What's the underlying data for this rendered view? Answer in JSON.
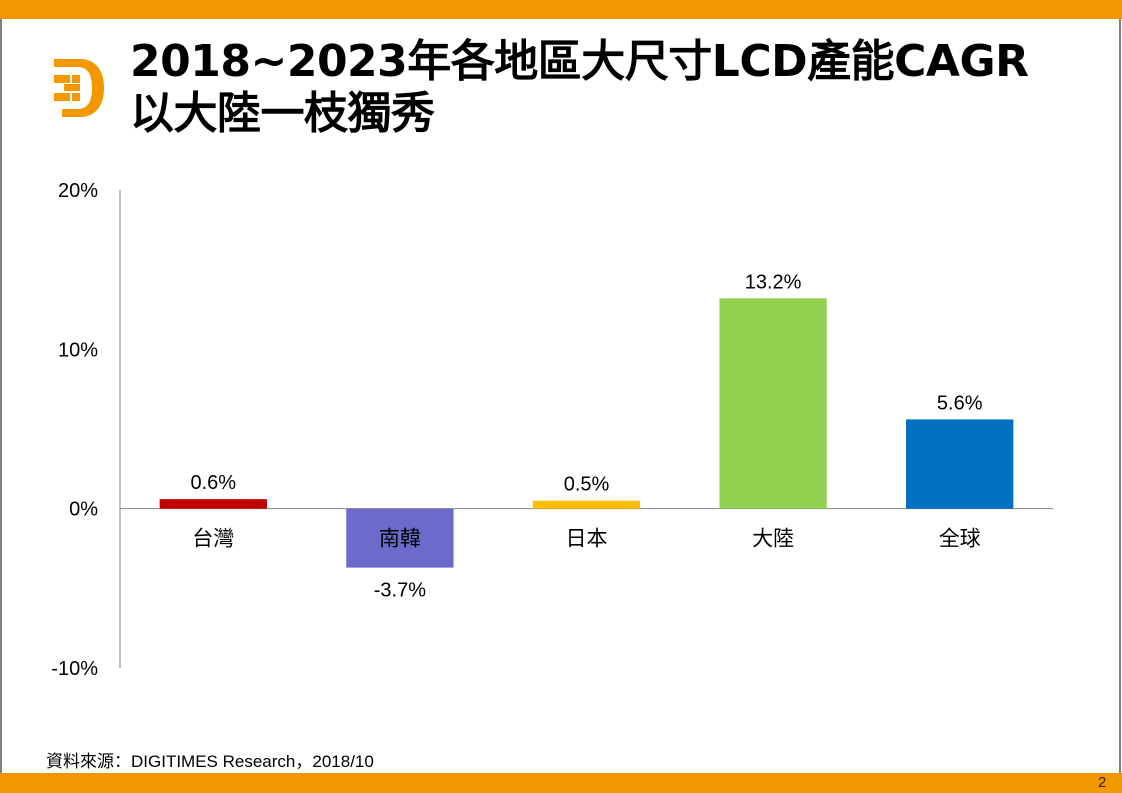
{
  "slide": {
    "title_lines": [
      "2018~2023年各地區大尺寸LCD產能CAGR",
      "以大陸一枝獨秀"
    ],
    "source": "資料來源：DIGITIMES Research，2018/10",
    "page_number": "2",
    "logo_icon": "digitimes-d-logo-icon",
    "accent_color": "#F39800"
  },
  "chart_data": {
    "type": "bar",
    "title": "2018~2023年各地區大尺寸LCD產能CAGR以大陸一枝獨秀",
    "xlabel": "",
    "ylabel": "",
    "categories": [
      "台灣",
      "南韓",
      "日本",
      "大陸",
      "全球"
    ],
    "values": [
      0.6,
      -3.7,
      0.5,
      13.2,
      5.6
    ],
    "data_labels": [
      "0.6%",
      "-3.7%",
      "0.5%",
      "13.2%",
      "5.6%"
    ],
    "colors": [
      "#C00000",
      "#6B6BCB",
      "#FFC000",
      "#92D050",
      "#0070C0"
    ],
    "unit": "%",
    "ylim": [
      -10,
      20
    ],
    "yticks": [
      20,
      10,
      0,
      -10
    ],
    "ytick_labels": [
      "20%",
      "10%",
      "0%",
      "-10%"
    ],
    "grid": false,
    "legend": "none"
  }
}
